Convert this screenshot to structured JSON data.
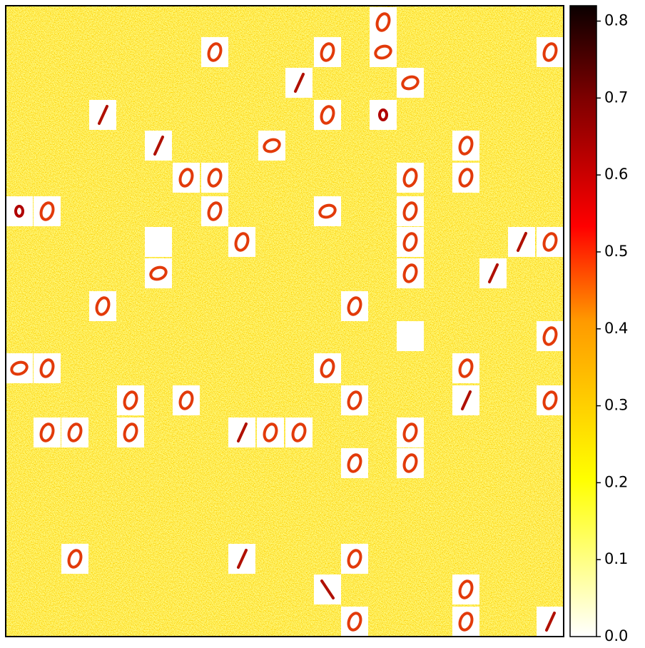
{
  "chart_data": {
    "type": "heatmap",
    "colormap": "hot_r",
    "colorbar": {
      "lim": [
        0,
        0.82
      ],
      "ticks": [
        {
          "value": 0,
          "label": "0.0"
        },
        0.1,
        0.2,
        0.3,
        0.4,
        0.5,
        0.6,
        0.7,
        0.8
      ]
    }
  }
}
